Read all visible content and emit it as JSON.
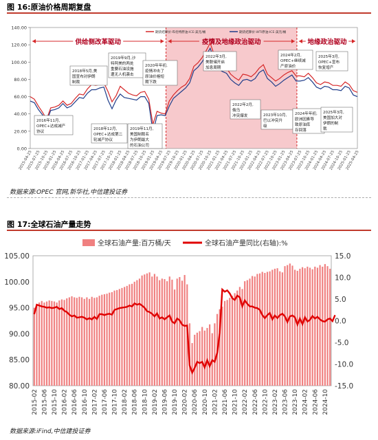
{
  "fig1": {
    "title": "图 16:原油价格周期复盘",
    "source": "数据来源:OPEC 官网,新华社,中信建投证券",
    "chart_data": {
      "type": "line",
      "ylim": [
        0,
        140
      ],
      "yticks": [
        "0.00",
        "20.00",
        "40.00",
        "60.00",
        "80.00",
        "100.00",
        "120.00",
        "140.00"
      ],
      "x_tick_labels": [
        "2015-04-25",
        "2015-07-25",
        "2015-10-25",
        "2016-01-25",
        "2016-04-25",
        "2016-07-25",
        "2016-10-25",
        "2017-01-25",
        "2017-04-25",
        "2017-07-25",
        "2017-10-25",
        "2018-01-25",
        "2018-04-25",
        "2018-07-25",
        "2018-10-25",
        "2019-01-25",
        "2019-04-25",
        "2019-07-25",
        "2019-10-25",
        "2020-01-25",
        "2020-04-25",
        "2020-07-25",
        "2020-10-25",
        "2021-01-25",
        "2021-04-25",
        "2021-07-25",
        "2021-10-25",
        "2022-01-25",
        "2022-04-25",
        "2022-07-25",
        "2022-10-25",
        "2023-01-25",
        "2023-04-25",
        "2023-07-25",
        "2023-10-25",
        "2024-01-25",
        "2024-04-25",
        "2024-07-25",
        "2024-10-25",
        "2025-01-25",
        "2025-04-25"
      ],
      "series": [
        {
          "name": "期货结算价:布伦特原油:ICE:美元/桶",
          "color": "#d62728",
          "values": [
            60,
            57,
            49,
            42,
            34,
            47,
            48,
            50,
            55,
            50,
            52,
            58,
            63,
            62,
            69,
            74,
            73,
            74,
            76,
            66,
            54,
            61,
            72,
            68,
            64,
            62,
            61,
            65,
            66,
            57,
            28,
            43,
            41,
            40,
            55,
            62,
            67,
            71,
            74,
            81,
            95,
            99,
            105,
            113,
            122,
            108,
            99,
            94,
            93,
            86,
            82,
            79,
            86,
            85,
            83,
            87,
            93,
            97,
            86,
            82,
            78,
            81,
            85,
            88,
            90,
            84,
            84,
            83,
            87,
            82,
            76,
            74,
            77,
            76,
            73,
            73,
            72,
            77,
            74,
            67,
            65
          ]
        },
        {
          "name": "期货结算价:WTI原油:ICE:美元/桶",
          "color": "#1f3d8a",
          "values": [
            55,
            53,
            45,
            39,
            31,
            44,
            45,
            47,
            52,
            47,
            49,
            54,
            59,
            58,
            64,
            68,
            68,
            70,
            71,
            56,
            46,
            56,
            63,
            59,
            58,
            57,
            56,
            60,
            60,
            52,
            19,
            38,
            39,
            38,
            49,
            58,
            62,
            66,
            70,
            76,
            90,
            94,
            100,
            108,
            116,
            103,
            92,
            89,
            87,
            80,
            76,
            73,
            79,
            80,
            78,
            81,
            88,
            91,
            81,
            77,
            72,
            75,
            79,
            82,
            85,
            78,
            78,
            79,
            82,
            77,
            71,
            69,
            72,
            71,
            68,
            68,
            67,
            72,
            70,
            62,
            60
          ]
        }
      ],
      "periods": [
        {
          "label": "供给侧改革驱动",
          "from": 0,
          "to": 0.415
        },
        {
          "label": "疫情及地缘政治驱动",
          "from": 0.415,
          "to": 0.815
        },
        {
          "label": "地缘政治驱动",
          "from": 0.815,
          "to": 1.0
        }
      ],
      "annotations": [
        {
          "lines": [
            "2016年11月,",
            "OPEC+达成减产",
            "协议"
          ]
        },
        {
          "lines": [
            "2018年5月,美",
            "国宣布对伊朗",
            "制裁"
          ]
        },
        {
          "lines": [
            "2019年9月,沙",
            "特阿美的两处",
            "重要石油设施",
            "遭无人机袭击"
          ]
        },
        {
          "lines": [
            "2020年年初,",
            "疫情冲击了",
            "原油价格短",
            "期下跌"
          ]
        },
        {
          "lines": [
            "2018年12月,",
            "OPEC+达成第二",
            "轮减产协议"
          ]
        },
        {
          "lines": [
            "2019年11月,",
            "美国制裁名",
            "为伊朗最大",
            "的石油公司"
          ]
        },
        {
          "lines": [
            "2022年3月,",
            "美联储开启",
            "加息周期"
          ]
        },
        {
          "lines": [
            "2022年2月,",
            "俄乌",
            "冲突爆发"
          ]
        },
        {
          "lines": [
            "2023年10月,",
            "巴以冲突升",
            "级"
          ]
        },
        {
          "lines": [
            "2024年2月,",
            "OPEC+继续减",
            "产原油价"
          ]
        },
        {
          "lines": [
            "2025年3月,",
            "OPEC+宣布",
            "恢复增产"
          ]
        },
        {
          "lines": [
            "2024年年初,",
            "欧洲因素导",
            "致原油库",
            "存回落"
          ]
        },
        {
          "lines": [
            "2025年3月,",
            "美国加大对",
            "伊朗的制",
            "裁"
          ]
        }
      ]
    }
  },
  "fig2": {
    "title": "图 17:全球石油产量走势",
    "source": "数据来源:iFind,中信建投证券",
    "chart_data": {
      "type": "bar",
      "ylim_left": [
        80,
        105
      ],
      "ylim_right": [
        -15,
        15
      ],
      "yticks_left": [
        "80.00",
        "85.00",
        "90.00",
        "95.00",
        "100.00",
        "105.00"
      ],
      "yticks_right": [
        "-15.0",
        "-10.0",
        "-5.0",
        "0.0",
        "5.0",
        "10.0",
        "15.0"
      ],
      "x_tick_labels": [
        "2015-02",
        "2015-06",
        "2015-10",
        "2016-02",
        "2016-06",
        "2016-10",
        "2017-02",
        "2017-06",
        "2017-10",
        "2018-02",
        "2018-06",
        "2018-10",
        "2019-02",
        "2019-06",
        "2019-10",
        "2020-02",
        "2020-06",
        "2020-10",
        "2021-02",
        "2021-06",
        "2021-10",
        "2022-02",
        "2022-06",
        "2022-10",
        "2023-02",
        "2023-06",
        "2023-10",
        "2024-02",
        "2024-06",
        "2024-10"
      ],
      "series": [
        {
          "name": "全球石油产量:百万桶/天",
          "color": "#f08080",
          "axis": "left",
          "values": [
            95.0,
            95.6,
            96.0,
            96.3,
            96.0,
            96.2,
            96.4,
            96.3,
            96.2,
            96.0,
            96.4,
            96.6,
            96.5,
            96.8,
            97.0,
            97.2,
            97.0,
            96.9,
            97.1,
            97.0,
            96.7,
            97.0,
            96.7,
            97.1,
            96.9,
            97.0,
            97.3,
            97.5,
            97.6,
            97.7,
            97.9,
            98.0,
            98.3,
            98.4,
            98.6,
            98.8,
            99.0,
            99.2,
            99.5,
            99.6,
            100.0,
            100.3,
            100.6,
            101.2,
            101.4,
            101.6,
            101.8,
            101.0,
            101.5,
            101.0,
            100.3,
            100.6,
            100.5,
            100.1,
            101.0,
            100.4,
            98.5,
            100.6,
            100.9,
            100.2,
            101.3,
            99.5,
            92.0,
            88.2,
            89.8,
            90.2,
            90.5,
            91.3,
            90.6,
            91.1,
            91.8,
            90.1,
            92.0,
            93.8,
            94.7,
            95.2,
            96.3,
            96.5,
            96.9,
            97.3,
            97.8,
            98.3,
            99.0,
            98.6,
            100.1,
            100.3,
            100.6,
            101.1,
            101.0,
            101.5,
            101.6,
            101.9,
            101.7,
            101.9,
            102.0,
            102.3,
            102.5,
            102.6,
            102.0,
            101.8,
            103.0,
            103.2,
            103.5,
            103.1,
            102.3,
            102.1,
            102.5,
            102.8,
            102.6,
            102.9,
            102.7,
            102.4,
            102.9,
            102.7,
            103.2,
            102.9,
            103.4,
            103.0,
            102.5
          ]
        },
        {
          "name": "全球石油产量同比(右轴):%",
          "color": "#e00000",
          "axis": "right",
          "values": [
            1.5,
            3.7,
            3.5,
            3.3,
            3.2,
            3.0,
            3.1,
            2.9,
            3.0,
            3.2,
            2.7,
            2.9,
            2.3,
            2.0,
            1.4,
            1.0,
            1.2,
            0.7,
            0.8,
            0.9,
            0.7,
            0.3,
            0.6,
            0.3,
            0.9,
            0.4,
            1.5,
            1.5,
            1.3,
            1.5,
            1.6,
            1.4,
            2.5,
            2.7,
            2.9,
            3.0,
            3.1,
            3.2,
            3.5,
            3.3,
            4.0,
            3.7,
            3.9,
            3.5,
            3.0,
            2.2,
            2.0,
            1.6,
            1.0,
            1.7,
            0.5,
            0.8,
            0.3,
            0.8,
            1.2,
            -0.2,
            -0.6,
            0.5,
            0.1,
            -0.9,
            -1.2,
            -1.1,
            -10.3,
            -12.0,
            -10.9,
            -9.5,
            -9.8,
            -9.5,
            -10.8,
            -9.1,
            -10.5,
            -9.1,
            -9.5,
            -7.4,
            -2.8,
            7.2,
            6.7,
            7.0,
            6.3,
            5.2,
            4.8,
            5.8,
            5.4,
            3.3,
            4.7,
            3.9,
            3.3,
            3.3,
            3.0,
            2.9,
            2.5,
            1.3,
            0.6,
            1.3,
            1.8,
            0.3,
            1.2,
            0.6,
            1.3,
            1.6,
            1.0,
            -0.3,
            1.0,
            1.2,
            0.8,
            -0.9,
            0.5,
            -0.8,
            0.8,
            -0.2,
            0.2,
            1.1,
            0.5,
            0.9,
            0.3,
            -0.1,
            -0.2,
            0.3,
            0.5,
            -0.1,
            1.3
          ]
        }
      ]
    }
  }
}
